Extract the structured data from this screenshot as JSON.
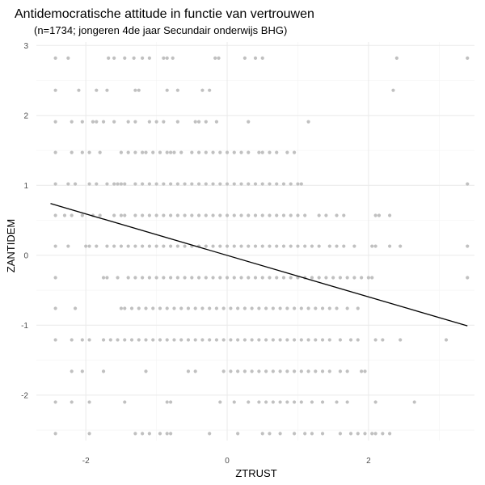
{
  "chart_data": {
    "type": "scatter",
    "title": "Antidemocratische attitude in functie van vertrouwen",
    "subtitle": "(n=1734; jongeren 4de jaar Secundair onderwijs BHG)",
    "xlabel": "ZTRUST",
    "ylabel": "ZANTIDEM",
    "xlim": [
      -2.7,
      3.5
    ],
    "ylim": [
      -2.65,
      3.05
    ],
    "x_ticks": [
      -2,
      0,
      2
    ],
    "y_ticks": [
      -2,
      -1,
      0,
      1,
      2,
      3
    ],
    "grid": true,
    "point_color": "#c0c0c0",
    "line_color": "#000000",
    "regression_line": {
      "x": [
        -2.5,
        3.4
      ],
      "y": [
        0.74,
        -1.01
      ]
    },
    "points": {
      "x": [
        -2.43,
        -2.25,
        -1.68,
        -1.6,
        -1.45,
        -1.32,
        -1.2,
        -1.1,
        -0.9,
        -0.85,
        -0.77,
        -0.17,
        -0.12,
        0.25,
        0.4,
        0.5,
        2.4,
        3.4,
        -2.43,
        -2.1,
        -1.85,
        -1.7,
        -1.3,
        -1.25,
        -0.85,
        -0.7,
        -0.35,
        -0.25,
        2.35,
        -2.43,
        -2.2,
        -2.05,
        -1.9,
        -1.85,
        -1.75,
        -1.6,
        -1.4,
        -1.3,
        -1.1,
        -1.0,
        -0.9,
        -0.7,
        -0.45,
        -0.4,
        -0.3,
        -0.15,
        0.3,
        1.15,
        -2.43,
        -2.2,
        -2.05,
        -1.95,
        -1.8,
        -1.5,
        -1.4,
        -1.3,
        -1.2,
        -1.15,
        -1.05,
        -0.95,
        -0.85,
        -0.8,
        -0.75,
        -0.65,
        -0.5,
        -0.4,
        -0.3,
        -0.2,
        -0.1,
        0.0,
        0.1,
        0.2,
        0.3,
        0.45,
        0.5,
        0.6,
        0.7,
        0.85,
        0.95,
        -2.43,
        -2.25,
        -2.15,
        -1.95,
        -1.85,
        -1.7,
        -1.6,
        -1.55,
        -1.5,
        -1.45,
        -1.3,
        -1.2,
        -1.1,
        -1.0,
        -0.9,
        -0.8,
        -0.7,
        -0.6,
        -0.5,
        -0.4,
        -0.3,
        -0.2,
        -0.1,
        0.0,
        0.1,
        0.2,
        0.3,
        0.4,
        0.5,
        0.6,
        0.7,
        0.8,
        0.9,
        1.0,
        1.05,
        3.4,
        -2.43,
        -2.3,
        -2.2,
        -2.05,
        -1.9,
        -1.8,
        -1.6,
        -1.5,
        -1.45,
        -1.3,
        -1.2,
        -1.1,
        -1.0,
        -0.9,
        -0.8,
        -0.7,
        -0.6,
        -0.5,
        -0.4,
        -0.3,
        -0.2,
        -0.1,
        0.0,
        0.1,
        0.2,
        0.3,
        0.4,
        0.5,
        0.6,
        0.7,
        0.8,
        0.9,
        1.0,
        1.1,
        1.3,
        1.4,
        1.55,
        1.65,
        2.1,
        2.15,
        2.3,
        -2.43,
        -2.25,
        -2.0,
        -1.95,
        -1.85,
        -1.7,
        -1.6,
        -1.5,
        -1.4,
        -1.3,
        -1.2,
        -1.1,
        -1.0,
        -0.9,
        -0.8,
        -0.7,
        -0.6,
        -0.5,
        -0.4,
        -0.3,
        -0.2,
        -0.1,
        0.0,
        0.1,
        0.2,
        0.3,
        0.4,
        0.5,
        0.6,
        0.7,
        0.8,
        0.9,
        1.0,
        1.1,
        1.2,
        1.3,
        1.45,
        1.55,
        1.65,
        1.8,
        2.05,
        2.1,
        2.3,
        2.45,
        3.4,
        -2.43,
        -1.75,
        -1.7,
        -1.55,
        -1.4,
        -1.3,
        -1.2,
        -1.1,
        -1.0,
        -0.9,
        -0.8,
        -0.7,
        -0.6,
        -0.5,
        -0.4,
        -0.3,
        -0.2,
        -0.1,
        0.0,
        0.1,
        0.2,
        0.3,
        0.4,
        0.5,
        0.6,
        0.7,
        0.8,
        0.9,
        1.0,
        1.1,
        1.2,
        1.3,
        1.4,
        1.5,
        1.6,
        1.7,
        1.8,
        1.9,
        2.0,
        2.05,
        3.4,
        -2.43,
        -2.15,
        -1.5,
        -1.45,
        -1.35,
        -1.25,
        -1.15,
        -1.05,
        -0.95,
        -0.85,
        -0.75,
        -0.65,
        -0.55,
        -0.45,
        -0.35,
        -0.25,
        -0.15,
        -0.05,
        0.05,
        0.15,
        0.25,
        0.35,
        0.45,
        0.55,
        0.65,
        0.75,
        0.85,
        0.95,
        1.05,
        1.15,
        1.25,
        1.35,
        1.45,
        1.55,
        1.7,
        1.85,
        -2.43,
        -2.2,
        -2.05,
        -1.95,
        -1.75,
        -1.65,
        -1.55,
        -1.45,
        -1.35,
        -1.25,
        -1.15,
        -1.05,
        -0.95,
        -0.85,
        -0.75,
        -0.65,
        -0.55,
        -0.45,
        -0.35,
        -0.25,
        -0.15,
        -0.05,
        0.05,
        0.15,
        0.25,
        0.35,
        0.45,
        0.55,
        0.65,
        0.75,
        0.85,
        0.95,
        1.05,
        1.15,
        1.25,
        1.35,
        1.45,
        1.6,
        1.75,
        1.85,
        2.1,
        2.2,
        2.45,
        3.1,
        -2.2,
        -2.05,
        -1.75,
        -1.15,
        -0.55,
        -0.45,
        -0.05,
        0.05,
        0.15,
        0.25,
        0.35,
        0.45,
        0.55,
        0.65,
        0.75,
        0.85,
        0.95,
        1.05,
        1.15,
        1.25,
        1.35,
        1.45,
        1.6,
        1.7,
        1.9,
        1.95,
        -2.43,
        -2.2,
        -1.95,
        -1.45,
        -0.85,
        -0.8,
        -0.1,
        0.1,
        0.3,
        0.45,
        0.55,
        0.65,
        0.75,
        0.85,
        0.95,
        1.05,
        1.2,
        1.35,
        1.55,
        1.7,
        2.1,
        2.65,
        -2.43,
        -1.95,
        -1.3,
        -1.2,
        -1.1,
        -0.95,
        -0.85,
        -0.8,
        -0.25,
        0.15,
        0.5,
        0.6,
        0.75,
        0.95,
        1.1,
        1.2,
        1.35,
        1.6,
        1.75,
        1.85,
        1.95,
        2.05,
        2.1,
        2.2,
        2.3
      ],
      "y": [
        2.82,
        2.82,
        2.82,
        2.82,
        2.82,
        2.82,
        2.82,
        2.82,
        2.82,
        2.82,
        2.82,
        2.82,
        2.82,
        2.82,
        2.82,
        2.82,
        2.82,
        2.82,
        2.36,
        2.36,
        2.36,
        2.36,
        2.36,
        2.36,
        2.36,
        2.36,
        2.36,
        2.36,
        2.36,
        1.91,
        1.91,
        1.91,
        1.91,
        1.91,
        1.91,
        1.91,
        1.91,
        1.91,
        1.91,
        1.91,
        1.91,
        1.91,
        1.91,
        1.91,
        1.91,
        1.91,
        1.91,
        1.91,
        1.47,
        1.47,
        1.47,
        1.47,
        1.47,
        1.47,
        1.47,
        1.47,
        1.47,
        1.47,
        1.47,
        1.47,
        1.47,
        1.47,
        1.47,
        1.47,
        1.47,
        1.47,
        1.47,
        1.47,
        1.47,
        1.47,
        1.47,
        1.47,
        1.47,
        1.47,
        1.47,
        1.47,
        1.47,
        1.47,
        1.47,
        1.02,
        1.02,
        1.02,
        1.02,
        1.02,
        1.02,
        1.02,
        1.02,
        1.02,
        1.02,
        1.02,
        1.02,
        1.02,
        1.02,
        1.02,
        1.02,
        1.02,
        1.02,
        1.02,
        1.02,
        1.02,
        1.02,
        1.02,
        1.02,
        1.02,
        1.02,
        1.02,
        1.02,
        1.02,
        1.02,
        1.02,
        1.02,
        1.02,
        1.02,
        1.02,
        1.02,
        0.57,
        0.57,
        0.57,
        0.57,
        0.57,
        0.57,
        0.57,
        0.57,
        0.57,
        0.57,
        0.57,
        0.57,
        0.57,
        0.57,
        0.57,
        0.57,
        0.57,
        0.57,
        0.57,
        0.57,
        0.57,
        0.57,
        0.57,
        0.57,
        0.57,
        0.57,
        0.57,
        0.57,
        0.57,
        0.57,
        0.57,
        0.57,
        0.57,
        0.57,
        0.57,
        0.57,
        0.57,
        0.57,
        0.57,
        0.57,
        0.57,
        0.13,
        0.13,
        0.13,
        0.13,
        0.13,
        0.13,
        0.13,
        0.13,
        0.13,
        0.13,
        0.13,
        0.13,
        0.13,
        0.13,
        0.13,
        0.13,
        0.13,
        0.13,
        0.13,
        0.13,
        0.13,
        0.13,
        0.13,
        0.13,
        0.13,
        0.13,
        0.13,
        0.13,
        0.13,
        0.13,
        0.13,
        0.13,
        0.13,
        0.13,
        0.13,
        0.13,
        0.13,
        0.13,
        0.13,
        0.13,
        0.13,
        0.13,
        0.13,
        0.13,
        0.13,
        -0.32,
        -0.32,
        -0.32,
        -0.32,
        -0.32,
        -0.32,
        -0.32,
        -0.32,
        -0.32,
        -0.32,
        -0.32,
        -0.32,
        -0.32,
        -0.32,
        -0.32,
        -0.32,
        -0.32,
        -0.32,
        -0.32,
        -0.32,
        -0.32,
        -0.32,
        -0.32,
        -0.32,
        -0.32,
        -0.32,
        -0.32,
        -0.32,
        -0.32,
        -0.32,
        -0.32,
        -0.32,
        -0.32,
        -0.32,
        -0.32,
        -0.32,
        -0.32,
        -0.32,
        -0.32,
        -0.32,
        -0.32,
        -0.76,
        -0.76,
        -0.76,
        -0.76,
        -0.76,
        -0.76,
        -0.76,
        -0.76,
        -0.76,
        -0.76,
        -0.76,
        -0.76,
        -0.76,
        -0.76,
        -0.76,
        -0.76,
        -0.76,
        -0.76,
        -0.76,
        -0.76,
        -0.76,
        -0.76,
        -0.76,
        -0.76,
        -0.76,
        -0.76,
        -0.76,
        -0.76,
        -0.76,
        -0.76,
        -0.76,
        -0.76,
        -0.76,
        -0.76,
        -0.76,
        -0.76,
        -1.21,
        -1.21,
        -1.21,
        -1.21,
        -1.21,
        -1.21,
        -1.21,
        -1.21,
        -1.21,
        -1.21,
        -1.21,
        -1.21,
        -1.21,
        -1.21,
        -1.21,
        -1.21,
        -1.21,
        -1.21,
        -1.21,
        -1.21,
        -1.21,
        -1.21,
        -1.21,
        -1.21,
        -1.21,
        -1.21,
        -1.21,
        -1.21,
        -1.21,
        -1.21,
        -1.21,
        -1.21,
        -1.21,
        -1.21,
        -1.21,
        -1.21,
        -1.21,
        -1.21,
        -1.21,
        -1.21,
        -1.21,
        -1.21,
        -1.21,
        -1.21,
        -1.66,
        -1.66,
        -1.66,
        -1.66,
        -1.66,
        -1.66,
        -1.66,
        -1.66,
        -1.66,
        -1.66,
        -1.66,
        -1.66,
        -1.66,
        -1.66,
        -1.66,
        -1.66,
        -1.66,
        -1.66,
        -1.66,
        -1.66,
        -1.66,
        -1.66,
        -1.66,
        -1.66,
        -1.66,
        -1.66,
        -2.1,
        -2.1,
        -2.1,
        -2.1,
        -2.1,
        -2.1,
        -2.1,
        -2.1,
        -2.1,
        -2.1,
        -2.1,
        -2.1,
        -2.1,
        -2.1,
        -2.1,
        -2.1,
        -2.1,
        -2.1,
        -2.1,
        -2.1,
        -2.1,
        -2.1,
        -2.55,
        -2.55,
        -2.55,
        -2.55,
        -2.55,
        -2.55,
        -2.55,
        -2.55,
        -2.55,
        -2.55,
        -2.55,
        -2.55,
        -2.55,
        -2.55,
        -2.55,
        -2.55,
        -2.55,
        -2.55,
        -2.55,
        -2.55,
        -2.55,
        -2.55,
        -2.55,
        -2.55,
        -2.55
      ]
    }
  }
}
